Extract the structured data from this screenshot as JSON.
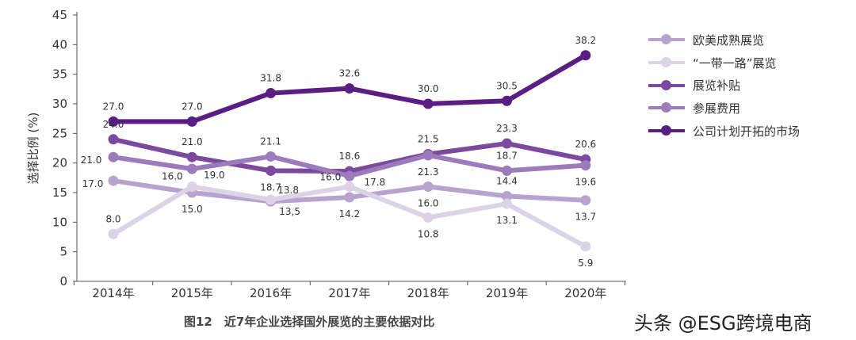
{
  "chart_data": {
    "type": "line",
    "title": "",
    "caption": "图12　近7年企业选择国外展览的主要依据对比",
    "ylabel": "选择比例 (%)",
    "xlabel": "",
    "categories": [
      "2014年",
      "2015年",
      "2016年",
      "2017年",
      "2018年",
      "2019年",
      "2020年"
    ],
    "ylim": [
      0,
      45
    ],
    "yticks": [
      "0",
      "5",
      "10",
      "15",
      "20",
      "25",
      "30",
      "35",
      "40",
      "45"
    ],
    "grid": false,
    "legend_position": "right",
    "series": [
      {
        "name": "欧美成熟展览",
        "color": "#b8a3cf",
        "values": [
          17.0,
          15.0,
          13.5,
          14.2,
          16.0,
          14.4,
          13.7
        ],
        "labels": [
          "17.0",
          "15.0",
          "13,5",
          "14.2",
          "16.0",
          "14.4",
          "13.7"
        ]
      },
      {
        "name": "“一带一路”展览",
        "color": "#dcd3e6",
        "values": [
          8.0,
          16.0,
          13.8,
          16.0,
          10.8,
          13.1,
          5.9
        ],
        "labels": [
          "8.0",
          "16.0",
          "13.8",
          "16.0",
          "10.8",
          "13.1",
          "5.9"
        ]
      },
      {
        "name": "展览补贴",
        "color": "#7b4a9e",
        "values": [
          24.0,
          21.0,
          18.7,
          18.6,
          21.5,
          23.3,
          20.6
        ],
        "labels": [
          "24.0",
          "21.0",
          "18.7",
          "18.6",
          "21.5",
          "23.3",
          "20.6"
        ]
      },
      {
        "name": "参展费用",
        "color": "#9c7bbb",
        "values": [
          21.0,
          19.0,
          21.1,
          17.8,
          21.3,
          18.7,
          19.6
        ],
        "labels": [
          "21.0",
          "19.0",
          "21.1",
          "17.8",
          "21.3",
          "18.7",
          "19.6"
        ]
      },
      {
        "name": "公司计划开拓的市场",
        "color": "#5a1d84",
        "values": [
          27.0,
          27.0,
          31.8,
          32.6,
          30.0,
          30.5,
          38.2
        ],
        "labels": [
          "27.0",
          "27.0",
          "31.8",
          "32.6",
          "30.0",
          "30.5",
          "38.2"
        ]
      }
    ]
  },
  "watermark": "头条 @ESG跨境电商"
}
